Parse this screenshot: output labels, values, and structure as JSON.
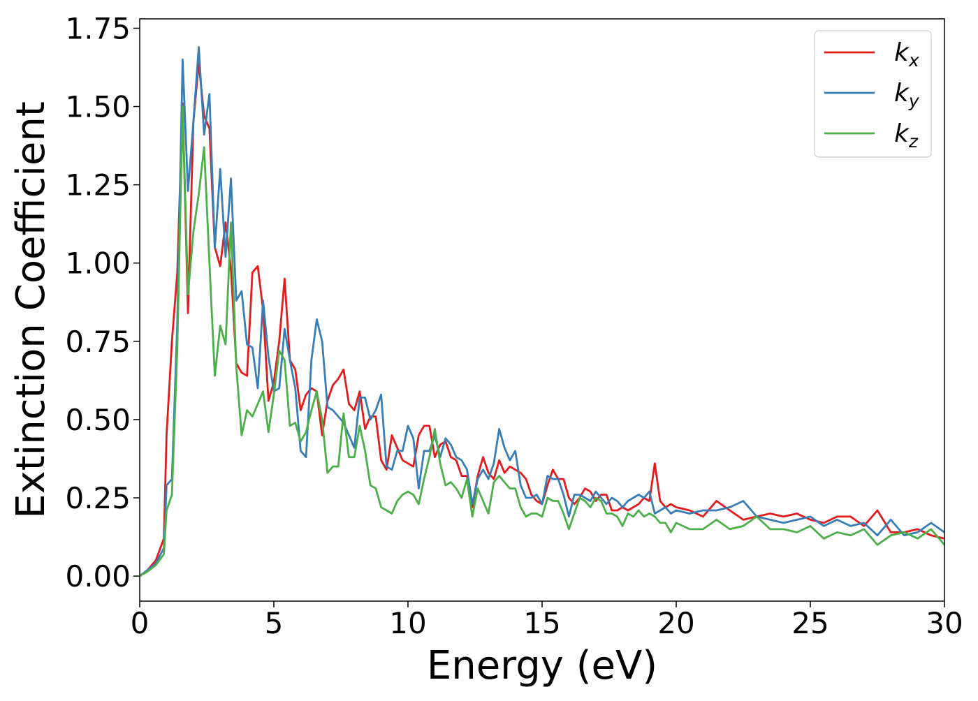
{
  "chart_data": {
    "type": "line",
    "title": "",
    "xlabel": "Energy (eV)",
    "ylabel": "Extinction Coefficient",
    "xlim": [
      0,
      30
    ],
    "ylim": [
      -0.08,
      1.78
    ],
    "xticks": [
      0,
      5,
      10,
      15,
      20,
      25,
      30
    ],
    "xtick_labels": [
      "0",
      "5",
      "10",
      "15",
      "20",
      "25",
      "30"
    ],
    "yticks": [
      0.0,
      0.25,
      0.5,
      0.75,
      1.0,
      1.25,
      1.5,
      1.75
    ],
    "ytick_labels": [
      "0.00",
      "0.25",
      "0.50",
      "0.75",
      "1.00",
      "1.25",
      "1.50",
      "1.75"
    ],
    "grid": false,
    "legend": "upper right",
    "series": [
      {
        "name": "k",
        "subscript": "x",
        "color": "#e41a1c",
        "x": [
          0,
          0.3,
          0.6,
          0.9,
          1.0,
          1.2,
          1.4,
          1.6,
          1.8,
          2.0,
          2.2,
          2.4,
          2.6,
          2.8,
          3.0,
          3.2,
          3.4,
          3.6,
          3.8,
          4.0,
          4.2,
          4.4,
          4.6,
          4.8,
          5.0,
          5.2,
          5.4,
          5.6,
          5.8,
          6.0,
          6.2,
          6.4,
          6.6,
          6.8,
          7.0,
          7.2,
          7.4,
          7.6,
          7.8,
          8.0,
          8.2,
          8.4,
          8.6,
          8.8,
          9.0,
          9.2,
          9.4,
          9.6,
          9.8,
          10.0,
          10.2,
          10.4,
          10.6,
          10.8,
          11.0,
          11.2,
          11.4,
          11.6,
          11.8,
          12.0,
          12.2,
          12.4,
          12.6,
          12.8,
          13.0,
          13.2,
          13.4,
          13.6,
          13.8,
          14.0,
          14.2,
          14.4,
          14.6,
          14.8,
          15.0,
          15.2,
          15.4,
          15.6,
          15.8,
          16.0,
          16.2,
          16.4,
          16.6,
          16.8,
          17.0,
          17.2,
          17.4,
          17.6,
          17.8,
          18.0,
          18.2,
          18.4,
          18.6,
          18.8,
          19.0,
          19.2,
          19.4,
          19.6,
          19.8,
          20.0,
          20.5,
          21.0,
          21.5,
          22.0,
          22.5,
          23.0,
          23.5,
          24.0,
          24.5,
          25.0,
          25.5,
          26.0,
          26.5,
          27.0,
          27.5,
          28.0,
          28.5,
          29.0,
          29.5,
          30.0
        ],
        "y": [
          0.0,
          0.02,
          0.05,
          0.12,
          0.45,
          0.75,
          0.97,
          1.51,
          0.84,
          1.45,
          1.64,
          1.47,
          1.43,
          1.05,
          0.99,
          1.13,
          0.98,
          0.68,
          0.65,
          0.64,
          0.97,
          0.99,
          0.85,
          0.56,
          0.62,
          0.75,
          0.95,
          0.69,
          0.66,
          0.53,
          0.58,
          0.6,
          0.59,
          0.45,
          0.56,
          0.61,
          0.63,
          0.66,
          0.55,
          0.53,
          0.59,
          0.47,
          0.51,
          0.51,
          0.37,
          0.34,
          0.45,
          0.41,
          0.37,
          0.36,
          0.35,
          0.45,
          0.48,
          0.48,
          0.38,
          0.42,
          0.43,
          0.38,
          0.37,
          0.32,
          0.32,
          0.22,
          0.32,
          0.38,
          0.33,
          0.31,
          0.37,
          0.33,
          0.35,
          0.34,
          0.33,
          0.31,
          0.26,
          0.24,
          0.23,
          0.29,
          0.34,
          0.31,
          0.31,
          0.25,
          0.23,
          0.25,
          0.28,
          0.27,
          0.24,
          0.26,
          0.26,
          0.21,
          0.21,
          0.22,
          0.21,
          0.22,
          0.23,
          0.25,
          0.24,
          0.36,
          0.24,
          0.22,
          0.23,
          0.22,
          0.21,
          0.19,
          0.24,
          0.21,
          0.18,
          0.19,
          0.2,
          0.19,
          0.2,
          0.18,
          0.17,
          0.19,
          0.19,
          0.16,
          0.21,
          0.14,
          0.14,
          0.15,
          0.13,
          0.12
        ]
      },
      {
        "name": "k",
        "subscript": "y",
        "color": "#377eb8",
        "x": [
          0,
          0.3,
          0.6,
          0.9,
          1.0,
          1.2,
          1.4,
          1.6,
          1.8,
          2.0,
          2.2,
          2.4,
          2.6,
          2.8,
          3.0,
          3.2,
          3.4,
          3.6,
          3.8,
          4.0,
          4.2,
          4.4,
          4.6,
          4.8,
          5.0,
          5.2,
          5.4,
          5.6,
          5.8,
          6.0,
          6.2,
          6.4,
          6.6,
          6.8,
          7.0,
          7.2,
          7.4,
          7.6,
          7.8,
          8.0,
          8.2,
          8.4,
          8.6,
          8.8,
          9.0,
          9.2,
          9.4,
          9.6,
          9.8,
          10.0,
          10.2,
          10.4,
          10.6,
          10.8,
          11.0,
          11.2,
          11.4,
          11.6,
          11.8,
          12.0,
          12.2,
          12.4,
          12.6,
          12.8,
          13.0,
          13.2,
          13.4,
          13.6,
          13.8,
          14.0,
          14.2,
          14.4,
          14.6,
          14.8,
          15.0,
          15.2,
          15.4,
          15.6,
          15.8,
          16.0,
          16.2,
          16.4,
          16.6,
          16.8,
          17.0,
          17.2,
          17.4,
          17.6,
          17.8,
          18.0,
          18.2,
          18.4,
          18.6,
          18.8,
          19.0,
          19.2,
          19.4,
          19.6,
          19.8,
          20.0,
          20.5,
          21.0,
          21.5,
          22.0,
          22.5,
          23.0,
          23.5,
          24.0,
          24.5,
          25.0,
          25.5,
          26.0,
          26.5,
          27.0,
          27.5,
          28.0,
          28.5,
          29.0,
          29.5,
          30.0
        ],
        "y": [
          0.0,
          0.02,
          0.04,
          0.09,
          0.29,
          0.31,
          0.81,
          1.65,
          1.23,
          1.45,
          1.69,
          1.41,
          1.54,
          1.05,
          1.3,
          1.02,
          1.27,
          0.88,
          0.91,
          0.74,
          0.73,
          0.6,
          0.88,
          0.7,
          0.59,
          0.6,
          0.79,
          0.69,
          0.6,
          0.4,
          0.38,
          0.69,
          0.82,
          0.75,
          0.54,
          0.53,
          0.51,
          0.49,
          0.45,
          0.41,
          0.57,
          0.57,
          0.5,
          0.53,
          0.58,
          0.35,
          0.34,
          0.4,
          0.4,
          0.48,
          0.44,
          0.28,
          0.4,
          0.4,
          0.45,
          0.38,
          0.44,
          0.42,
          0.38,
          0.37,
          0.34,
          0.23,
          0.31,
          0.34,
          0.31,
          0.36,
          0.47,
          0.41,
          0.37,
          0.4,
          0.29,
          0.25,
          0.25,
          0.26,
          0.23,
          0.32,
          0.31,
          0.31,
          0.26,
          0.19,
          0.26,
          0.26,
          0.25,
          0.24,
          0.27,
          0.25,
          0.23,
          0.25,
          0.24,
          0.22,
          0.24,
          0.25,
          0.26,
          0.25,
          0.27,
          0.2,
          0.21,
          0.22,
          0.2,
          0.21,
          0.2,
          0.21,
          0.21,
          0.22,
          0.24,
          0.19,
          0.18,
          0.17,
          0.18,
          0.19,
          0.16,
          0.18,
          0.16,
          0.17,
          0.13,
          0.18,
          0.13,
          0.14,
          0.17,
          0.14
        ]
      },
      {
        "name": "k",
        "subscript": "z",
        "color": "#4daf4a",
        "x": [
          0,
          0.3,
          0.6,
          0.9,
          1.0,
          1.2,
          1.4,
          1.6,
          1.8,
          2.0,
          2.2,
          2.4,
          2.6,
          2.8,
          3.0,
          3.2,
          3.4,
          3.6,
          3.8,
          4.0,
          4.2,
          4.4,
          4.6,
          4.8,
          5.0,
          5.2,
          5.4,
          5.6,
          5.8,
          6.0,
          6.2,
          6.4,
          6.6,
          6.8,
          7.0,
          7.2,
          7.4,
          7.6,
          7.8,
          8.0,
          8.2,
          8.4,
          8.6,
          8.8,
          9.0,
          9.2,
          9.4,
          9.6,
          9.8,
          10.0,
          10.2,
          10.4,
          10.6,
          10.8,
          11.0,
          11.2,
          11.4,
          11.6,
          11.8,
          12.0,
          12.2,
          12.4,
          12.6,
          12.8,
          13.0,
          13.2,
          13.4,
          13.6,
          13.8,
          14.0,
          14.2,
          14.4,
          14.6,
          14.8,
          15.0,
          15.2,
          15.4,
          15.6,
          15.8,
          16.0,
          16.2,
          16.4,
          16.6,
          16.8,
          17.0,
          17.2,
          17.4,
          17.6,
          17.8,
          18.0,
          18.2,
          18.4,
          18.6,
          18.8,
          19.0,
          19.2,
          19.4,
          19.6,
          19.8,
          20.0,
          20.5,
          21.0,
          21.5,
          22.0,
          22.5,
          23.0,
          23.5,
          24.0,
          24.5,
          25.0,
          25.5,
          26.0,
          26.5,
          27.0,
          27.5,
          28.0,
          28.5,
          29.0,
          29.5,
          30.0
        ],
        "y": [
          0.0,
          0.015,
          0.035,
          0.07,
          0.21,
          0.26,
          0.73,
          1.5,
          0.9,
          1.1,
          1.22,
          1.37,
          1.0,
          0.64,
          0.8,
          0.74,
          1.13,
          0.67,
          0.45,
          0.53,
          0.51,
          0.55,
          0.59,
          0.46,
          0.58,
          0.72,
          0.69,
          0.48,
          0.49,
          0.43,
          0.46,
          0.53,
          0.59,
          0.5,
          0.33,
          0.35,
          0.35,
          0.52,
          0.38,
          0.38,
          0.48,
          0.4,
          0.29,
          0.28,
          0.22,
          0.21,
          0.2,
          0.24,
          0.26,
          0.27,
          0.26,
          0.23,
          0.31,
          0.38,
          0.47,
          0.36,
          0.29,
          0.3,
          0.28,
          0.25,
          0.31,
          0.19,
          0.28,
          0.24,
          0.2,
          0.3,
          0.32,
          0.3,
          0.28,
          0.28,
          0.22,
          0.19,
          0.2,
          0.2,
          0.19,
          0.25,
          0.24,
          0.24,
          0.2,
          0.15,
          0.2,
          0.25,
          0.24,
          0.22,
          0.25,
          0.24,
          0.2,
          0.2,
          0.19,
          0.16,
          0.2,
          0.19,
          0.21,
          0.19,
          0.2,
          0.19,
          0.17,
          0.17,
          0.14,
          0.17,
          0.15,
          0.15,
          0.18,
          0.15,
          0.16,
          0.19,
          0.15,
          0.15,
          0.14,
          0.16,
          0.12,
          0.14,
          0.13,
          0.15,
          0.1,
          0.13,
          0.14,
          0.12,
          0.15,
          0.1
        ]
      }
    ]
  }
}
